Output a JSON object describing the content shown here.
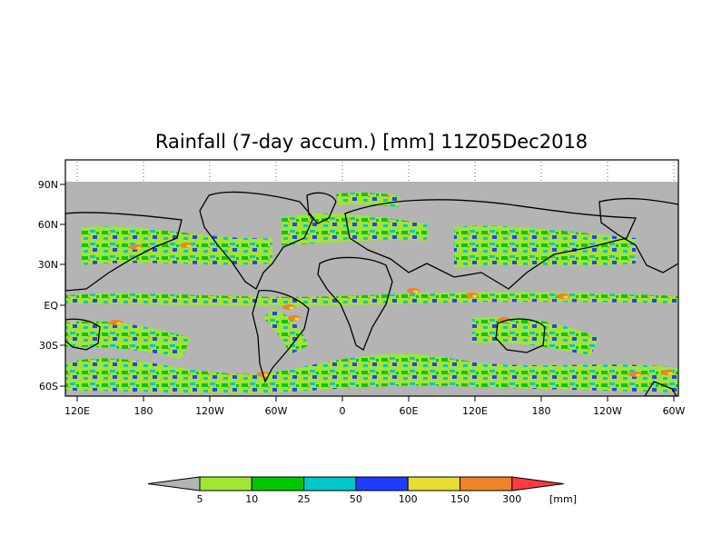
{
  "title": "Rainfall (7-day accum.) [mm] 11Z05Dec2018",
  "map": {
    "lat_labels": [
      "90N",
      "60N",
      "30N",
      "EQ",
      "30S",
      "60S"
    ],
    "lon_labels": [
      "120E",
      "180",
      "120W",
      "60W",
      "0",
      "60E",
      "120E",
      "180",
      "120W",
      "60W"
    ],
    "background_color": "#b4b4b4",
    "no_data_band_color": "#c8c8c8",
    "coastline_color": "#000000"
  },
  "colorbar": {
    "unit": "[mm]",
    "tick_labels": [
      "5",
      "10",
      "25",
      "50",
      "100",
      "150",
      "300"
    ],
    "colors": [
      "#b4b4b4",
      "#a0e632",
      "#00c800",
      "#00c8c8",
      "#1e3cff",
      "#e6dc32",
      "#f08228",
      "#fa3c3c"
    ]
  }
}
